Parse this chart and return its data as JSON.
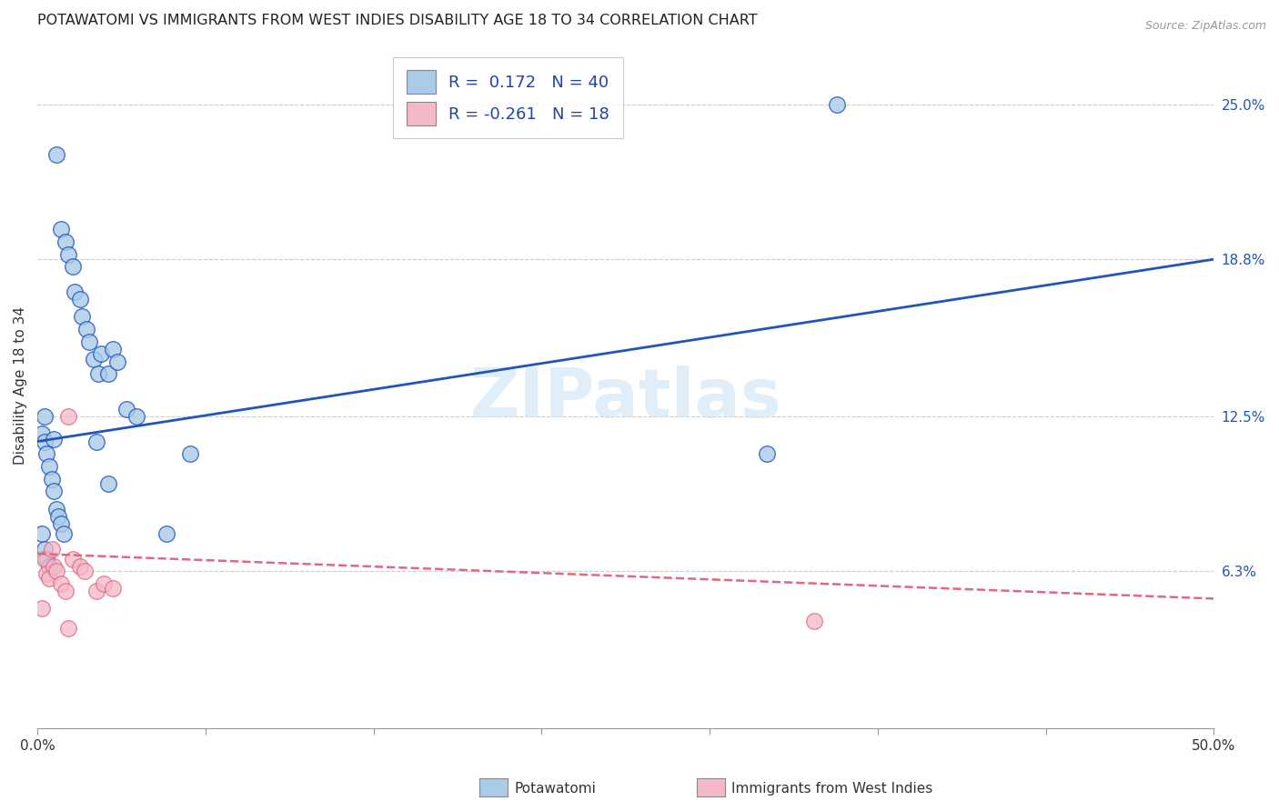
{
  "title": "POTAWATOMI VS IMMIGRANTS FROM WEST INDIES DISABILITY AGE 18 TO 34 CORRELATION CHART",
  "source": "Source: ZipAtlas.com",
  "ylabel": "Disability Age 18 to 34",
  "xlim": [
    0.0,
    0.5
  ],
  "ylim": [
    0.0,
    0.275
  ],
  "blue_color": "#aacce8",
  "pink_color": "#f5b8c8",
  "blue_line_color": "#2255bb",
  "pink_line_color": "#e06880",
  "watermark": "ZIPatlas",
  "blue_r": "0.172",
  "blue_n": "40",
  "pink_r": "-0.261",
  "pink_n": "18",
  "blue_line_x": [
    0.0,
    0.5
  ],
  "blue_line_y": [
    0.115,
    0.188
  ],
  "pink_line_x": [
    0.0,
    0.5
  ],
  "pink_line_y": [
    0.07,
    0.052
  ],
  "ytick_vals": [
    0.063,
    0.125,
    0.188,
    0.25
  ],
  "ytick_labels": [
    "6.3%",
    "12.5%",
    "18.8%",
    "25.0%"
  ],
  "xtick_vals": [
    0.0,
    0.0714,
    0.1429,
    0.2143,
    0.2857,
    0.3571,
    0.4286,
    0.5
  ],
  "xtick_labels": [
    "0.0%",
    "",
    "",
    "",
    "",
    "",
    "",
    "50.0%"
  ],
  "potawatomi_x": [
    0.008,
    0.01,
    0.012,
    0.013,
    0.015,
    0.016,
    0.018,
    0.019,
    0.021,
    0.022,
    0.024,
    0.026,
    0.027,
    0.03,
    0.032,
    0.034,
    0.038,
    0.042,
    0.002,
    0.003,
    0.004,
    0.005,
    0.006,
    0.007,
    0.008,
    0.009,
    0.01,
    0.011,
    0.002,
    0.003,
    0.004,
    0.005,
    0.055,
    0.065,
    0.31,
    0.34,
    0.007,
    0.03,
    0.003,
    0.025
  ],
  "potawatomi_y": [
    0.23,
    0.2,
    0.195,
    0.19,
    0.185,
    0.175,
    0.172,
    0.165,
    0.16,
    0.155,
    0.148,
    0.142,
    0.15,
    0.142,
    0.152,
    0.147,
    0.128,
    0.125,
    0.118,
    0.115,
    0.11,
    0.105,
    0.1,
    0.095,
    0.088,
    0.085,
    0.082,
    0.078,
    0.078,
    0.072,
    0.068,
    0.065,
    0.078,
    0.11,
    0.11,
    0.25,
    0.116,
    0.098,
    0.125,
    0.115
  ],
  "westindies_x": [
    0.002,
    0.003,
    0.004,
    0.005,
    0.006,
    0.007,
    0.008,
    0.01,
    0.012,
    0.013,
    0.015,
    0.018,
    0.02,
    0.025,
    0.028,
    0.032,
    0.33,
    0.013
  ],
  "westindies_y": [
    0.048,
    0.068,
    0.062,
    0.06,
    0.072,
    0.065,
    0.063,
    0.058,
    0.055,
    0.125,
    0.068,
    0.065,
    0.063,
    0.055,
    0.058,
    0.056,
    0.043,
    0.04
  ]
}
